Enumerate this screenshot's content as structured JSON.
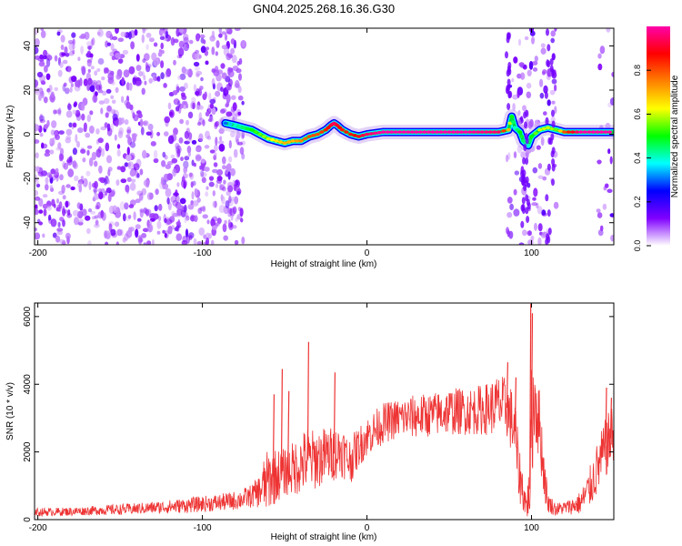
{
  "title": "GN04.2025.268.16.36.G30",
  "chart_data": [
    {
      "type": "heatmap",
      "xlabel": "Height of straight line (km)",
      "ylabel": "Frequency (Hz)",
      "xlim": [
        -202,
        150
      ],
      "ylim": [
        -50,
        48
      ],
      "xticks": [
        -200,
        -100,
        0,
        100
      ],
      "yticks": [
        -40,
        -20,
        0,
        20,
        40
      ],
      "grid": false,
      "colorbar": {
        "label": "Normalized spectral amplitude",
        "range": [
          0,
          1
        ],
        "ticks": [
          0.0,
          0.2,
          0.4,
          0.6,
          0.8
        ],
        "tick_labels": [
          "0.0",
          "0.2",
          "0.4",
          "0.6",
          "0.8"
        ],
        "colormap": [
          "#ffffff",
          "#8000ff",
          "#0000ff",
          "#00ffff",
          "#00ff00",
          "#ffff00",
          "#ff8000",
          "#ff0000",
          "#ff00aa"
        ]
      },
      "noise_regions": [
        {
          "x_range": [
            -202,
            -75
          ],
          "y_range": [
            -50,
            48
          ],
          "density": "high"
        },
        {
          "x_range": [
            85,
            115
          ],
          "y_range": [
            -50,
            48
          ],
          "density": "medium"
        },
        {
          "x_range": [
            140,
            150
          ],
          "y_range": [
            -50,
            48
          ],
          "density": "low"
        }
      ],
      "ridge": {
        "x": [
          -86,
          -80,
          -75,
          -70,
          -65,
          -60,
          -55,
          -50,
          -45,
          -40,
          -35,
          -30,
          -25,
          -22,
          -20,
          -18,
          -15,
          -10,
          -5,
          0,
          10,
          20,
          40,
          60,
          80,
          86,
          88,
          90,
          93,
          95,
          98,
          100,
          105,
          110,
          115,
          120,
          125,
          130,
          140,
          150
        ],
        "freq": [
          5,
          4,
          3,
          2,
          0,
          -2,
          -3,
          -4,
          -3,
          -3,
          -1,
          0,
          2,
          4,
          5,
          4,
          2,
          0,
          -1,
          0,
          1,
          1,
          1,
          1,
          1,
          2,
          8,
          3,
          1,
          -3,
          -5,
          -1,
          2,
          3,
          2,
          1,
          1,
          1,
          1,
          1
        ],
        "amplitude": [
          0.3,
          0.4,
          0.45,
          0.5,
          0.55,
          0.6,
          0.65,
          0.7,
          0.7,
          0.75,
          0.8,
          0.8,
          0.85,
          0.9,
          0.95,
          0.9,
          0.85,
          0.85,
          0.9,
          0.95,
          1.0,
          1.0,
          1.0,
          1.0,
          0.95,
          0.7,
          0.5,
          0.4,
          0.5,
          0.45,
          0.4,
          0.5,
          0.6,
          0.6,
          0.55,
          0.8,
          0.9,
          1.0,
          1.0,
          1.0
        ]
      }
    },
    {
      "type": "line",
      "xlabel": "Height of straight line (km)",
      "ylabel": "SNR (10 * v/v)",
      "xlim": [
        -202,
        150
      ],
      "ylim": [
        0,
        6400
      ],
      "xticks": [
        -200,
        -100,
        0,
        100
      ],
      "yticks": [
        0,
        2000,
        4000,
        6000
      ],
      "grid": false,
      "series": [
        {
          "color": "#ee3333",
          "x": [
            -202,
            -190,
            -180,
            -170,
            -160,
            -150,
            -140,
            -130,
            -120,
            -110,
            -100,
            -90,
            -80,
            -75,
            -70,
            -65,
            -62,
            -58,
            -55,
            -50,
            -45,
            -40,
            -36,
            -35,
            -30,
            -25,
            -20,
            -15,
            -12,
            -10,
            -5,
            0,
            5,
            10,
            20,
            30,
            40,
            50,
            60,
            70,
            75,
            80,
            85,
            88,
            90,
            92,
            95,
            97,
            99,
            100,
            102,
            105,
            108,
            110,
            115,
            120,
            125,
            130,
            135,
            140,
            145,
            150
          ],
          "mean": [
            220,
            230,
            240,
            260,
            280,
            300,
            320,
            350,
            380,
            420,
            460,
            500,
            560,
            620,
            700,
            850,
            1050,
            1250,
            1300,
            1400,
            1500,
            1650,
            1800,
            1750,
            1800,
            1900,
            1950,
            2050,
            1800,
            1750,
            2150,
            2450,
            2650,
            2850,
            3000,
            3050,
            3100,
            3200,
            3200,
            3250,
            3300,
            3400,
            3300,
            2900,
            2600,
            1500,
            800,
            400,
            900,
            2800,
            3700,
            2700,
            1200,
            500,
            300,
            350,
            400,
            500,
            900,
            1500,
            2100,
            2600
          ],
          "spread": [
            120,
            120,
            130,
            130,
            150,
            160,
            170,
            180,
            200,
            220,
            240,
            250,
            280,
            300,
            350,
            500,
            900,
            900,
            800,
            700,
            800,
            900,
            1000,
            900,
            900,
            850,
            800,
            800,
            700,
            700,
            600,
            600,
            600,
            600,
            600,
            650,
            650,
            700,
            700,
            750,
            800,
            900,
            900,
            1000,
            1000,
            900,
            600,
            400,
            900,
            1800,
            1500,
            1100,
            700,
            300,
            200,
            200,
            250,
            350,
            600,
            800,
            900,
            900
          ],
          "spikes": [
            [
              -57,
              3700
            ],
            [
              -52,
              4450
            ],
            [
              -48,
              3800
            ],
            [
              -36,
              5250
            ],
            [
              -20,
              4350
            ],
            [
              85,
              4650
            ],
            [
              90,
              4200
            ],
            [
              99,
              6380
            ],
            [
              100,
              6100
            ],
            [
              145,
              3900
            ],
            [
              148,
              3600
            ]
          ]
        }
      ]
    }
  ]
}
